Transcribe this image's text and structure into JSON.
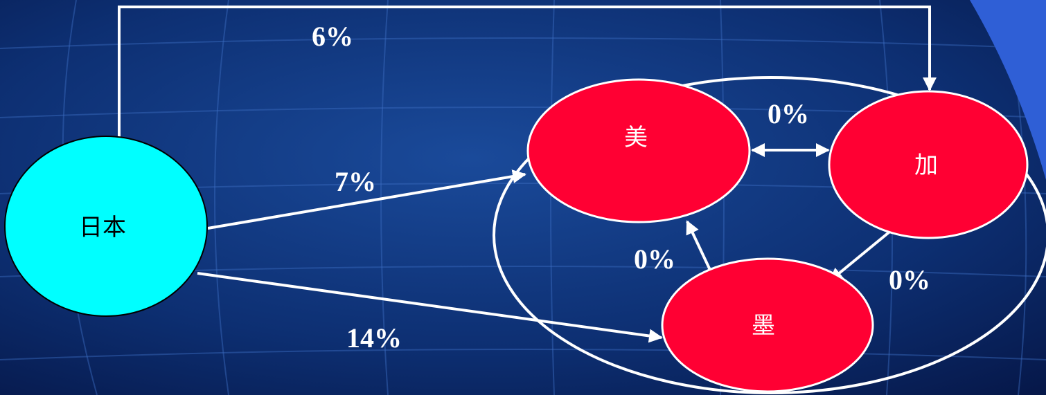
{
  "nodes": {
    "japan": "日本",
    "usa": "美",
    "canada": "加",
    "mexico": "墨"
  },
  "edges": {
    "japan_canada": "6%",
    "japan_usa": "7%",
    "japan_mexico": "14%",
    "usa_canada": "0%",
    "usa_mexico": "0%",
    "canada_mexico": "0%"
  },
  "colors": {
    "background": "#0a2a6a",
    "japan_fill": "#00ffff",
    "member_fill": "#ff0033",
    "line": "#ffffff"
  }
}
